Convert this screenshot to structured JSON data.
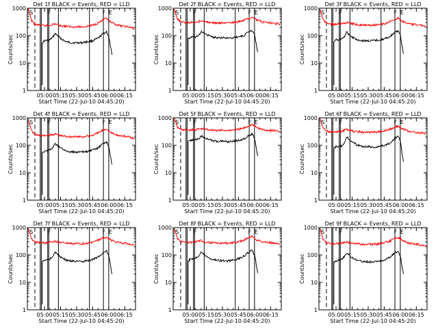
{
  "figure": {
    "background": "#ffffff",
    "events_color": "#000000",
    "lld_color": "#ff0000",
    "panel_label_text": "S"
  },
  "shared_axes": {
    "ylabel": "Counts/sec",
    "xlabel": "Start Time (22-Jul-10 04:45:20)",
    "y_scale": "log",
    "ylim": [
      1,
      1000
    ],
    "y_ticks": [
      "1",
      "10",
      "100",
      "1000"
    ],
    "x_ticks": [
      "05:00",
      "05:15",
      "05:30",
      "05:45",
      "06:00",
      "06:15"
    ],
    "x_tick_minutes": [
      0,
      15,
      30,
      45,
      60,
      75
    ],
    "x_range_minutes": [
      -16,
      85
    ]
  },
  "chart_data": [
    {
      "type": "line",
      "title": "Det 1f BLACK = Events, RED = LLD",
      "dashed_line_minute": -9,
      "solid_lines_minutes": [
        -4,
        -3,
        3,
        4,
        13,
        42,
        55,
        60
      ],
      "markers": [
        {
          "minute": -14,
          "label": "S"
        },
        {
          "minute": 3,
          "label": "F"
        },
        {
          "minute": 54,
          "label": "F"
        },
        {
          "minute": 60,
          "label": "E"
        }
      ],
      "events_end_drop": true,
      "series": [
        {
          "name": "Events",
          "x": [
            -2,
            0,
            5,
            8,
            10,
            15,
            20,
            25,
            30,
            35,
            40,
            45,
            50,
            55,
            58,
            60,
            63
          ],
          "y": [
            55,
            65,
            70,
            90,
            120,
            80,
            60,
            55,
            55,
            55,
            60,
            65,
            80,
            120,
            140,
            90,
            20
          ]
        },
        {
          "name": "LLD",
          "x": [
            -15,
            -12,
            -9,
            -5,
            0,
            5,
            10,
            15,
            20,
            25,
            30,
            35,
            40,
            45,
            50,
            55,
            58,
            62,
            66,
            70,
            75,
            80,
            84
          ],
          "y": [
            900,
            350,
            260,
            240,
            230,
            240,
            270,
            230,
            220,
            210,
            210,
            210,
            220,
            240,
            290,
            380,
            420,
            300,
            260,
            230,
            220,
            200,
            180
          ]
        }
      ]
    },
    {
      "type": "line",
      "title": "Det 2f BLACK = Events, RED = LLD",
      "dashed_line_minute": -9,
      "solid_lines_minutes": [
        -4,
        -3,
        3,
        4,
        13,
        42,
        55,
        60
      ],
      "markers": [
        {
          "minute": -14,
          "label": "S"
        },
        {
          "minute": 3,
          "label": "F"
        },
        {
          "minute": 54,
          "label": "F"
        },
        {
          "minute": 60,
          "label": "E"
        }
      ],
      "events_end_drop": true,
      "series": [
        {
          "name": "Events",
          "x": [
            -2,
            0,
            5,
            8,
            10,
            15,
            20,
            25,
            30,
            35,
            40,
            45,
            50,
            55,
            58,
            60,
            63
          ],
          "y": [
            80,
            85,
            90,
            100,
            140,
            110,
            90,
            85,
            85,
            80,
            85,
            90,
            100,
            140,
            160,
            110,
            25
          ]
        },
        {
          "name": "LLD",
          "x": [
            -15,
            -12,
            -9,
            -5,
            0,
            5,
            10,
            15,
            20,
            25,
            30,
            35,
            40,
            45,
            50,
            55,
            58,
            62,
            66,
            70,
            75,
            80,
            84
          ],
          "y": [
            900,
            400,
            320,
            300,
            300,
            310,
            350,
            320,
            300,
            290,
            290,
            290,
            300,
            320,
            360,
            450,
            480,
            380,
            330,
            300,
            290,
            280,
            260
          ]
        }
      ]
    },
    {
      "type": "line",
      "title": "Det 3f BLACK = Events, RED = LLD",
      "dashed_line_minute": -9,
      "solid_lines_minutes": [
        -4,
        -3,
        3,
        4,
        13,
        42,
        55,
        60
      ],
      "markers": [
        {
          "minute": -14,
          "label": "S"
        },
        {
          "minute": 3,
          "label": "F"
        },
        {
          "minute": 54,
          "label": "F"
        },
        {
          "minute": 60,
          "label": "E"
        }
      ],
      "events_end_drop": true,
      "series": [
        {
          "name": "Events",
          "x": [
            -2,
            0,
            5,
            8,
            10,
            15,
            20,
            25,
            30,
            35,
            40,
            45,
            50,
            55,
            58,
            60,
            63
          ],
          "y": [
            60,
            70,
            75,
            95,
            130,
            90,
            70,
            65,
            65,
            65,
            70,
            75,
            90,
            130,
            150,
            100,
            22
          ]
        },
        {
          "name": "LLD",
          "x": [
            -15,
            -12,
            -9,
            -5,
            0,
            5,
            10,
            15,
            20,
            25,
            30,
            35,
            40,
            45,
            50,
            55,
            58,
            62,
            66,
            70,
            75,
            80,
            84
          ],
          "y": [
            900,
            380,
            280,
            260,
            260,
            270,
            300,
            270,
            250,
            240,
            240,
            240,
            250,
            270,
            320,
            400,
            440,
            330,
            290,
            260,
            250,
            240,
            220
          ]
        }
      ]
    },
    {
      "type": "line",
      "title": "Det 4f BLACK = Events, RED = LLD",
      "dashed_line_minute": -9,
      "solid_lines_minutes": [
        -4,
        -3,
        3,
        4,
        13,
        42,
        55,
        60
      ],
      "markers": [
        {
          "minute": -14,
          "label": "S"
        },
        {
          "minute": 3,
          "label": "F"
        },
        {
          "minute": 54,
          "label": "F"
        },
        {
          "minute": 60,
          "label": "E"
        }
      ],
      "events_end_drop": true,
      "series": [
        {
          "name": "Events",
          "x": [
            -2,
            0,
            5,
            8,
            10,
            15,
            20,
            25,
            30,
            35,
            40,
            45,
            50,
            55,
            58,
            60,
            63
          ],
          "y": [
            55,
            62,
            68,
            85,
            115,
            80,
            62,
            58,
            57,
            56,
            60,
            66,
            80,
            118,
            130,
            90,
            20
          ]
        },
        {
          "name": "LLD",
          "x": [
            -15,
            -12,
            -9,
            -5,
            0,
            5,
            10,
            15,
            20,
            25,
            30,
            35,
            40,
            45,
            50,
            55,
            58,
            62,
            66,
            70,
            75,
            80,
            84
          ],
          "y": [
            850,
            330,
            250,
            230,
            225,
            235,
            260,
            225,
            215,
            205,
            205,
            205,
            215,
            235,
            280,
            370,
            400,
            290,
            250,
            225,
            215,
            195,
            175
          ]
        }
      ]
    },
    {
      "type": "line",
      "title": "Det 5f BLACK = Events, RED = LLD",
      "dashed_line_minute": -9,
      "solid_lines_minutes": [
        -4,
        -3,
        3,
        4,
        13,
        42,
        55,
        60
      ],
      "markers": [
        {
          "minute": -14,
          "label": "S"
        },
        {
          "minute": 3,
          "label": "F"
        },
        {
          "minute": 54,
          "label": "F"
        },
        {
          "minute": 60,
          "label": "E"
        }
      ],
      "events_end_drop": true,
      "series": [
        {
          "name": "Events",
          "x": [
            -2,
            0,
            5,
            8,
            10,
            15,
            20,
            25,
            30,
            35,
            40,
            45,
            50,
            55,
            58,
            60,
            63
          ],
          "y": [
            140,
            150,
            160,
            175,
            220,
            180,
            150,
            140,
            140,
            135,
            140,
            150,
            170,
            230,
            260,
            180,
            40
          ]
        },
        {
          "name": "LLD",
          "x": [
            -15,
            -12,
            -9,
            -5,
            0,
            5,
            10,
            15,
            20,
            25,
            30,
            35,
            40,
            45,
            50,
            55,
            58,
            62,
            66,
            70,
            75,
            80,
            84
          ],
          "y": [
            1000,
            450,
            380,
            360,
            360,
            370,
            400,
            380,
            360,
            350,
            350,
            350,
            360,
            380,
            420,
            520,
            560,
            450,
            390,
            360,
            350,
            340,
            320
          ]
        }
      ]
    },
    {
      "type": "line",
      "title": "Det 6f BLACK = Events, RED = LLD",
      "dashed_line_minute": -9,
      "solid_lines_minutes": [
        -4,
        -3,
        3,
        4,
        13,
        42,
        55,
        60
      ],
      "markers": [
        {
          "minute": -14,
          "label": "S"
        },
        {
          "minute": 3,
          "label": "F"
        },
        {
          "minute": 54,
          "label": "F"
        },
        {
          "minute": 60,
          "label": "E"
        }
      ],
      "events_end_drop": true,
      "series": [
        {
          "name": "Events",
          "x": [
            -2,
            0,
            5,
            8,
            10,
            15,
            20,
            25,
            30,
            35,
            40,
            45,
            50,
            55,
            58,
            60,
            63
          ],
          "y": [
            80,
            90,
            95,
            120,
            210,
            130,
            100,
            90,
            90,
            85,
            90,
            100,
            120,
            180,
            210,
            140,
            25
          ]
        },
        {
          "name": "LLD",
          "x": [
            -15,
            -12,
            -9,
            -5,
            0,
            5,
            10,
            15,
            20,
            25,
            30,
            35,
            40,
            45,
            50,
            55,
            58,
            62,
            66,
            70,
            75,
            80,
            84
          ],
          "y": [
            950,
            420,
            330,
            310,
            310,
            320,
            380,
            330,
            310,
            300,
            300,
            300,
            310,
            330,
            380,
            470,
            500,
            400,
            340,
            310,
            300,
            280,
            260
          ]
        }
      ]
    },
    {
      "type": "line",
      "title": "Det 7f BLACK = Events, RED = LLD",
      "dashed_line_minute": -9,
      "solid_lines_minutes": [
        -4,
        -3,
        3,
        4,
        13,
        42,
        55,
        60
      ],
      "markers": [
        {
          "minute": -14,
          "label": "S"
        },
        {
          "minute": 3,
          "label": "F"
        },
        {
          "minute": 54,
          "label": "F"
        },
        {
          "minute": 60,
          "label": "E"
        }
      ],
      "events_end_drop": true,
      "series": [
        {
          "name": "Events",
          "x": [
            -2,
            0,
            5,
            8,
            10,
            15,
            20,
            25,
            30,
            35,
            40,
            45,
            50,
            55,
            58,
            60,
            63
          ],
          "y": [
            55,
            65,
            72,
            90,
            125,
            85,
            65,
            60,
            58,
            57,
            62,
            68,
            85,
            125,
            140,
            95,
            20
          ]
        },
        {
          "name": "LLD",
          "x": [
            -15,
            -12,
            -9,
            -5,
            0,
            5,
            10,
            15,
            20,
            25,
            30,
            35,
            40,
            45,
            50,
            55,
            58,
            62,
            66,
            70,
            75,
            80,
            84
          ],
          "y": [
            950,
            380,
            300,
            280,
            280,
            290,
            320,
            280,
            270,
            260,
            260,
            260,
            270,
            290,
            340,
            420,
            460,
            350,
            300,
            280,
            270,
            250,
            230
          ]
        }
      ]
    },
    {
      "type": "line",
      "title": "Det 8f BLACK = Events, RED = LLD",
      "dashed_line_minute": -9,
      "solid_lines_minutes": [
        -4,
        -3,
        3,
        4,
        13,
        42,
        55,
        60
      ],
      "markers": [
        {
          "minute": -14,
          "label": "S"
        },
        {
          "minute": 3,
          "label": "F"
        },
        {
          "minute": 54,
          "label": "F"
        },
        {
          "minute": 60,
          "label": "E"
        }
      ],
      "events_end_drop": true,
      "series": [
        {
          "name": "Events",
          "x": [
            -2,
            0,
            5,
            8,
            10,
            15,
            20,
            25,
            30,
            35,
            40,
            45,
            50,
            55,
            58,
            60,
            63
          ],
          "y": [
            60,
            70,
            78,
            95,
            130,
            90,
            70,
            65,
            62,
            60,
            65,
            72,
            90,
            130,
            150,
            100,
            22
          ]
        },
        {
          "name": "LLD",
          "x": [
            -15,
            -12,
            -9,
            -5,
            0,
            5,
            10,
            15,
            20,
            25,
            30,
            35,
            40,
            45,
            50,
            55,
            58,
            62,
            66,
            70,
            75,
            80,
            84
          ],
          "y": [
            950,
            400,
            310,
            290,
            290,
            300,
            330,
            290,
            280,
            270,
            270,
            270,
            280,
            300,
            350,
            440,
            480,
            360,
            310,
            290,
            280,
            260,
            240
          ]
        }
      ]
    },
    {
      "type": "line",
      "title": "Det 9f BLACK = Events, RED = LLD",
      "dashed_line_minute": -9,
      "solid_lines_minutes": [
        -4,
        -3,
        3,
        4,
        13,
        42,
        55,
        60
      ],
      "markers": [
        {
          "minute": -14,
          "label": "S"
        },
        {
          "minute": 3,
          "label": "F"
        },
        {
          "minute": 54,
          "label": "F"
        },
        {
          "minute": 60,
          "label": "E"
        }
      ],
      "events_end_drop": true,
      "series": [
        {
          "name": "Events",
          "x": [
            -2,
            0,
            5,
            8,
            10,
            15,
            20,
            25,
            30,
            35,
            40,
            45,
            50,
            55,
            58,
            60,
            63
          ],
          "y": [
            55,
            62,
            70,
            88,
            120,
            82,
            62,
            58,
            56,
            55,
            60,
            66,
            82,
            120,
            135,
            92,
            20
          ]
        },
        {
          "name": "LLD",
          "x": [
            -15,
            -12,
            -9,
            -5,
            0,
            5,
            10,
            15,
            20,
            25,
            30,
            35,
            40,
            45,
            50,
            55,
            58,
            62,
            66,
            70,
            75,
            80,
            84
          ],
          "y": [
            900,
            360,
            280,
            260,
            260,
            270,
            300,
            265,
            255,
            245,
            245,
            245,
            255,
            275,
            320,
            400,
            440,
            330,
            285,
            260,
            250,
            230,
            210
          ]
        }
      ]
    }
  ]
}
